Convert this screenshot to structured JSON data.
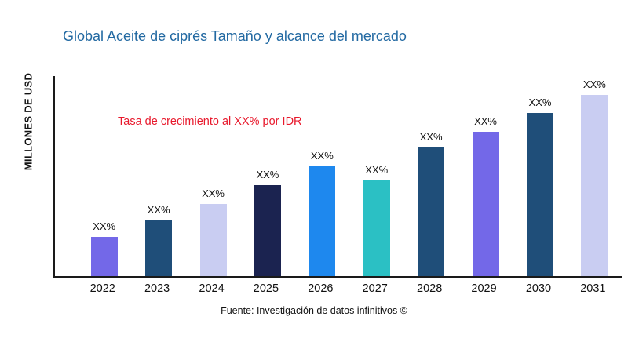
{
  "page": {
    "background": "#ffffff"
  },
  "header": {
    "title": "Global Aceite de ciprés Tamaño y alcance del mercado",
    "title_color": "#2269A2"
  },
  "axis": {
    "y_label": "MILLONES DE USD"
  },
  "annotation": {
    "text": "Tasa de crecimiento al XX% por IDR",
    "color": "#E8192C"
  },
  "footer": {
    "source": "Fuente: Investigación de datos infinitivos ©"
  },
  "chart_data": {
    "type": "bar",
    "title": "Global Aceite de ciprés Tamaño y alcance del mercado",
    "xlabel": "",
    "ylabel": "MILLONES DE USD",
    "categories": [
      "2022",
      "2023",
      "2024",
      "2025",
      "2026",
      "2027",
      "2028",
      "2029",
      "2030",
      "2031"
    ],
    "values": [
      50,
      71,
      92,
      116,
      140,
      122,
      164,
      184,
      208,
      231
    ],
    "value_units": "relative height (axis unlabeled, no numeric ticks shown)",
    "bar_labels": [
      "XX%",
      "XX%",
      "XX%",
      "XX%",
      "XX%",
      "XX%",
      "XX%",
      "XX%",
      "XX%",
      "XX%"
    ],
    "colors": [
      "#7368E8",
      "#1F4E79",
      "#C9CDF2",
      "#1B2350",
      "#1E88EE",
      "#2BC0C4",
      "#1F4E79",
      "#7368E8",
      "#1F4E79",
      "#C9CDF2"
    ],
    "ylim": [
      0,
      255
    ],
    "grid": false,
    "legend": false,
    "annotation": "Tasa de crecimiento al XX% por IDR",
    "source": "Fuente: Investigación de datos infinitivos ©"
  }
}
